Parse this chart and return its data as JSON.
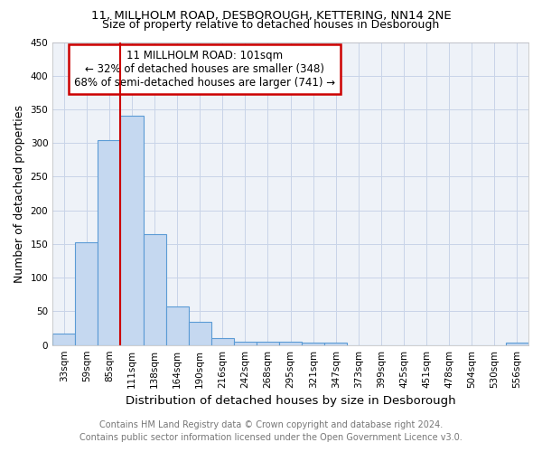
{
  "title": "11, MILLHOLM ROAD, DESBOROUGH, KETTERING, NN14 2NE",
  "subtitle": "Size of property relative to detached houses in Desborough",
  "xlabel": "Distribution of detached houses by size in Desborough",
  "ylabel": "Number of detached properties",
  "categories": [
    "33sqm",
    "59sqm",
    "85sqm",
    "111sqm",
    "138sqm",
    "164sqm",
    "190sqm",
    "216sqm",
    "242sqm",
    "268sqm",
    "295sqm",
    "321sqm",
    "347sqm",
    "373sqm",
    "399sqm",
    "425sqm",
    "451sqm",
    "478sqm",
    "504sqm",
    "530sqm",
    "556sqm"
  ],
  "values": [
    17,
    153,
    305,
    340,
    165,
    57,
    34,
    10,
    5,
    5,
    5,
    3,
    3,
    0,
    0,
    0,
    0,
    0,
    0,
    0,
    3
  ],
  "bar_color": "#c5d8f0",
  "bar_edge_color": "#5b9bd5",
  "property_line_index": 3,
  "annotation_line1": "11 MILLHOLM ROAD: 101sqm",
  "annotation_line2": "← 32% of detached houses are smaller (348)",
  "annotation_line3": "68% of semi-detached houses are larger (741) →",
  "annotation_box_color": "#cc0000",
  "ylim": [
    0,
    450
  ],
  "yticks": [
    0,
    50,
    100,
    150,
    200,
    250,
    300,
    350,
    400,
    450
  ],
  "footnote1": "Contains HM Land Registry data © Crown copyright and database right 2024.",
  "footnote2": "Contains public sector information licensed under the Open Government Licence v3.0.",
  "title_fontsize": 9.5,
  "subtitle_fontsize": 9,
  "ylabel_fontsize": 9,
  "xlabel_fontsize": 9.5,
  "tick_fontsize": 7.5,
  "annotation_fontsize": 8.5,
  "footnote_fontsize": 7,
  "grid_color": "#c8d4e8",
  "background_color": "#eef2f8"
}
